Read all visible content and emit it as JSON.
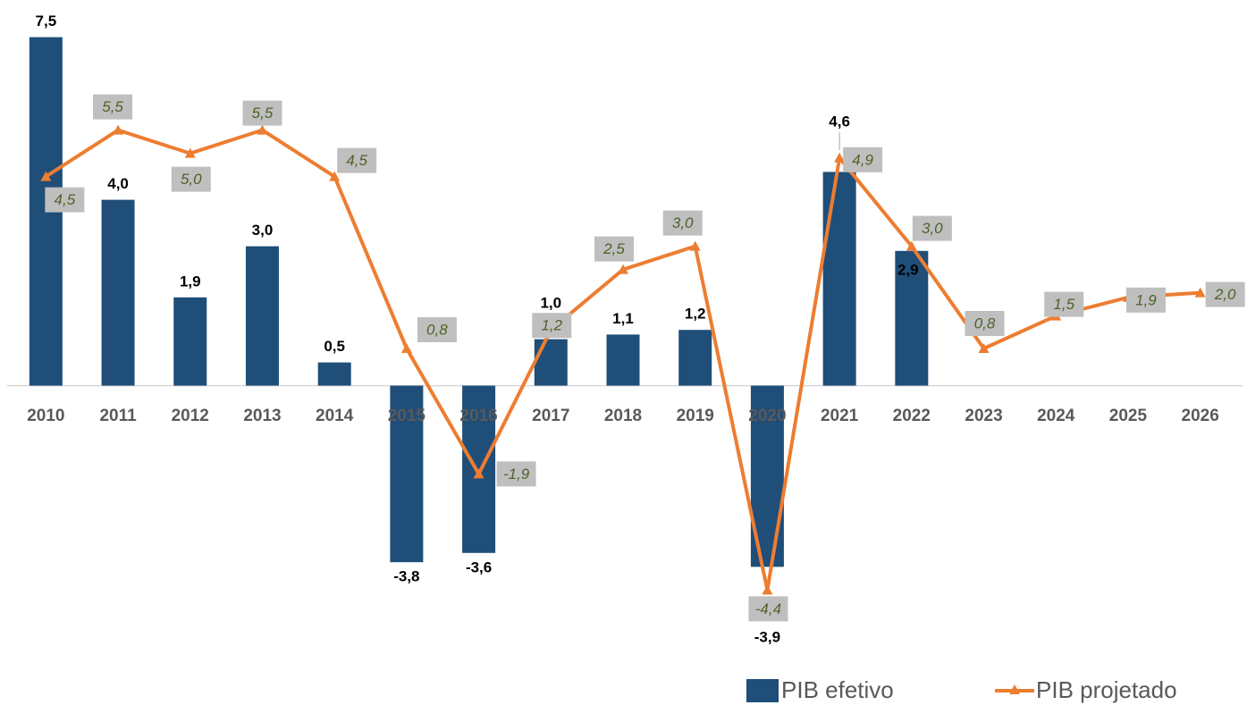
{
  "chart_data": {
    "type": "bar+line",
    "categories": [
      "2010",
      "2011",
      "2012",
      "2013",
      "2014",
      "2015",
      "2016",
      "2017",
      "2018",
      "2019",
      "2020",
      "2021",
      "2022",
      "2023",
      "2024",
      "2025",
      "2026"
    ],
    "series": [
      {
        "name": "PIB efetivo",
        "type": "bar",
        "color": "#1f4e79",
        "values": [
          7.5,
          4.0,
          1.9,
          3.0,
          0.5,
          -3.8,
          -3.6,
          1.0,
          1.1,
          1.2,
          -3.9,
          4.6,
          2.9,
          null,
          null,
          null,
          null
        ],
        "value_labels": [
          "7,5",
          "4,0",
          "1,9",
          "3,0",
          "0,5",
          "-3,8",
          "-3,6",
          "1,0",
          "1,1",
          "1,2",
          "-3,9",
          "4,6",
          "2,9",
          null,
          null,
          null,
          null
        ]
      },
      {
        "name": "PIB projetado",
        "type": "line",
        "color": "#ed7d31",
        "values": [
          4.5,
          5.5,
          5.0,
          5.5,
          4.5,
          0.8,
          -1.9,
          1.2,
          2.5,
          3.0,
          -4.4,
          4.9,
          3.0,
          0.8,
          1.5,
          1.9,
          2.0
        ],
        "value_labels": [
          "4,5",
          "5,5",
          "5,0",
          "5,5",
          "4,5",
          "0,8",
          "-1,9",
          "1,2",
          "2,5",
          "3,0",
          "-4,4",
          "4,9",
          "3,0",
          "0,8",
          "1,5",
          "1,9",
          "2,0"
        ]
      }
    ],
    "ylim": [
      -5.2,
      8.3
    ],
    "legend": "bottom-right"
  }
}
